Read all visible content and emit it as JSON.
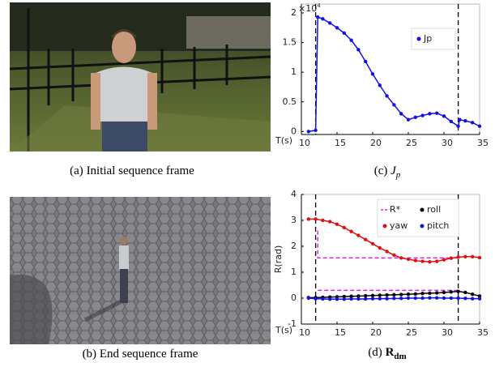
{
  "captions": [
    {
      "label": "(a)",
      "text": "Initial sequence frame"
    },
    {
      "label": "(b)",
      "text": "End sequence frame"
    },
    {
      "label": "(c)",
      "symbol": "J",
      "sub": "p"
    },
    {
      "label": "(d)",
      "symbol": "R",
      "sub": "dm"
    }
  ],
  "chart_data": [
    {
      "type": "line",
      "xlabel": "T(s)",
      "y_multiplier": {
        "base": "×10",
        "power": "4"
      },
      "xlim": [
        10,
        35
      ],
      "xticks": [
        10,
        15,
        20,
        25,
        30,
        35
      ],
      "ylim": [
        -0.05,
        2.15
      ],
      "yticks": [
        0,
        0.5,
        1,
        1.5,
        2
      ],
      "vlines": [
        12,
        32
      ],
      "legend": "top-middle",
      "x": [
        11,
        12,
        12.3,
        13,
        14,
        15,
        16,
        17,
        18,
        19,
        20,
        21,
        22,
        23,
        24,
        25,
        26,
        27,
        28,
        29,
        30,
        31,
        32,
        32.2,
        33,
        34,
        35
      ],
      "series": [
        {
          "name": "Jp",
          "color": "#1010e8",
          "values": [
            0,
            0.02,
            1.93,
            1.9,
            1.83,
            1.75,
            1.66,
            1.54,
            1.38,
            1.18,
            0.97,
            0.78,
            0.6,
            0.45,
            0.3,
            0.2,
            0.24,
            0.27,
            0.3,
            0.31,
            0.26,
            0.17,
            0.09,
            0.2,
            0.18,
            0.15,
            0.09
          ]
        }
      ]
    },
    {
      "type": "line",
      "xlabel": "T(s)",
      "ylabel": "R(rad)",
      "xlim": [
        10,
        35
      ],
      "xticks": [
        10,
        15,
        20,
        25,
        30,
        35
      ],
      "ylim": [
        -1,
        4
      ],
      "yticks": [
        -1,
        0,
        1,
        2,
        3,
        4
      ],
      "vlines": [
        12,
        32
      ],
      "legend": "top-right",
      "x": [
        11,
        12,
        13,
        14,
        15,
        16,
        17,
        18,
        19,
        20,
        21,
        22,
        23,
        24,
        25,
        26,
        27,
        28,
        29,
        30,
        31,
        32,
        33,
        34,
        35
      ],
      "series": [
        {
          "name": "R*",
          "color": "#e020e0",
          "dash": true,
          "x": [
            12.3,
            12.3,
            32,
            32,
            12.3,
            32
          ],
          "values": [
            2.6,
            1.55,
            1.55,
            null,
            0.3,
            0.3
          ]
        },
        {
          "name": "roll",
          "color": "#000000",
          "values": [
            0.02,
            0.02,
            0.03,
            0.04,
            0.05,
            0.06,
            0.07,
            0.08,
            0.09,
            0.1,
            0.11,
            0.12,
            0.13,
            0.14,
            0.15,
            0.16,
            0.18,
            0.19,
            0.2,
            0.22,
            0.24,
            0.26,
            0.22,
            0.15,
            0.08
          ]
        },
        {
          "name": "yaw",
          "color": "#e01010",
          "values": [
            3.05,
            3.05,
            3.0,
            2.95,
            2.85,
            2.72,
            2.57,
            2.42,
            2.26,
            2.1,
            1.94,
            1.8,
            1.66,
            1.55,
            1.5,
            1.45,
            1.42,
            1.4,
            1.42,
            1.48,
            1.54,
            1.58,
            1.6,
            1.6,
            1.56
          ]
        },
        {
          "name": "pitch",
          "color": "#1010e8",
          "values": [
            0,
            -0.02,
            -0.03,
            -0.04,
            -0.04,
            -0.04,
            -0.03,
            -0.03,
            -0.03,
            -0.02,
            -0.02,
            -0.02,
            -0.01,
            -0.01,
            0,
            0,
            0,
            0.01,
            0.01,
            0,
            0,
            0,
            -0.01,
            -0.02,
            -0.02
          ]
        }
      ]
    }
  ]
}
